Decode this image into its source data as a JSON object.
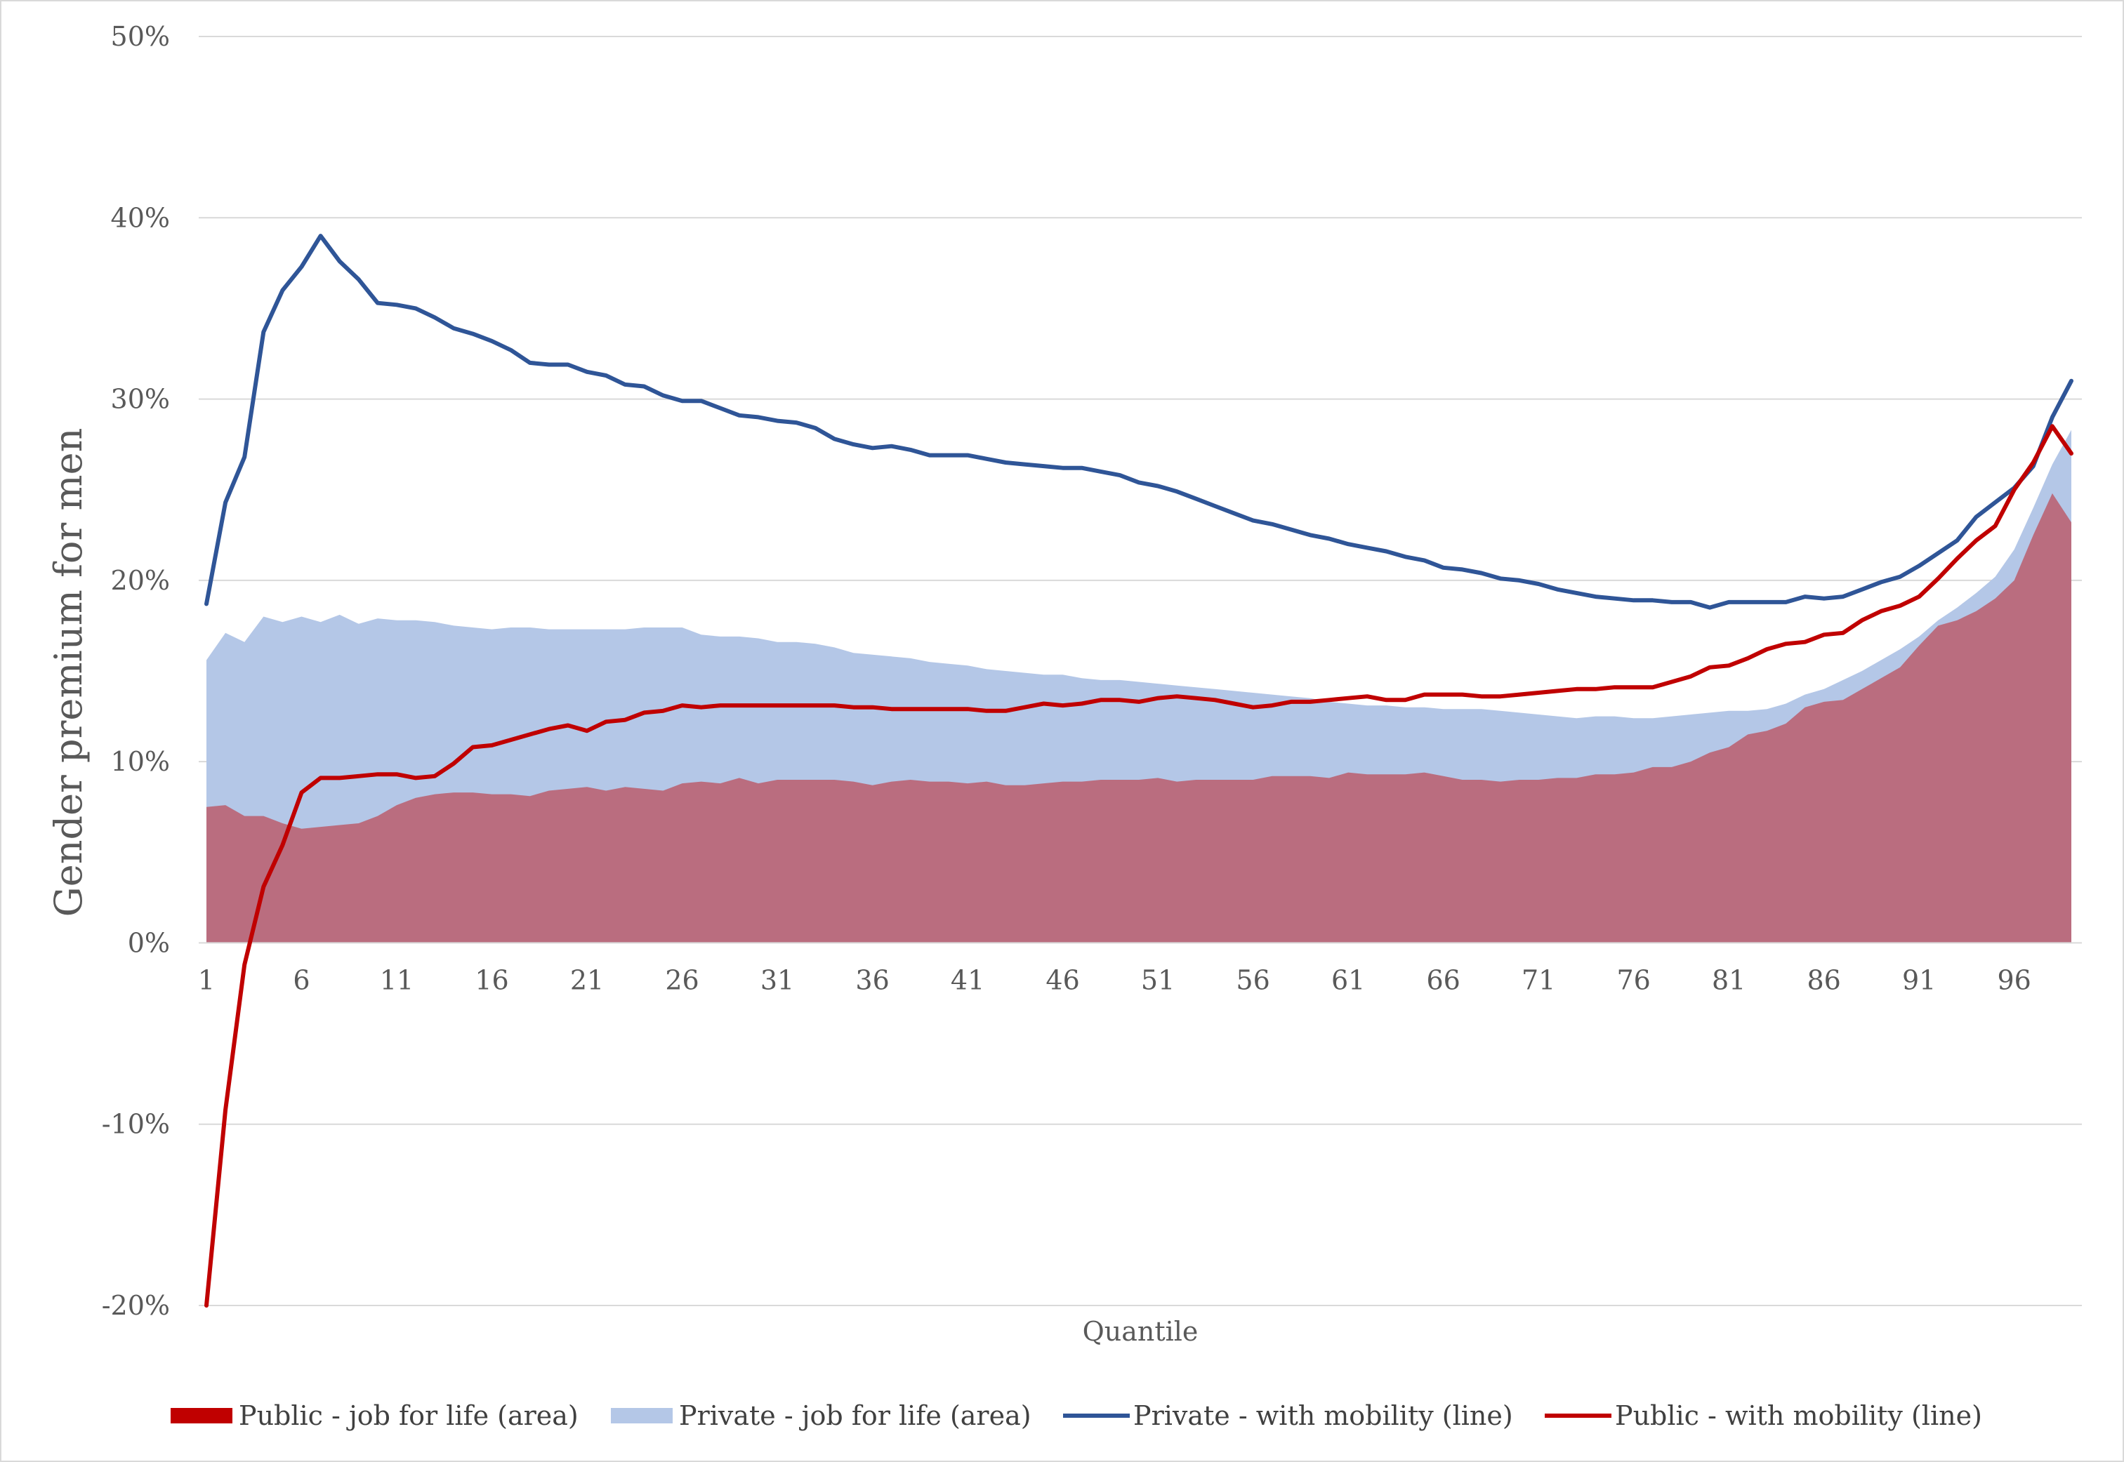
{
  "chart_data": {
    "type": "area",
    "xlabel": "Quantile",
    "ylabel": "Gender premium for men",
    "ylim": [
      -0.2,
      0.5
    ],
    "y_ticks": [
      -0.2,
      -0.1,
      0,
      0.1,
      0.2,
      0.3,
      0.4,
      0.5
    ],
    "y_tick_labels": [
      "-20%",
      "-10%",
      "0%",
      "10%",
      "20%",
      "30%",
      "40%",
      "50%"
    ],
    "x_ticks": [
      1,
      6,
      11,
      16,
      21,
      26,
      31,
      36,
      41,
      46,
      51,
      56,
      61,
      66,
      71,
      76,
      81,
      86,
      91,
      96
    ],
    "x_tick_labels": [
      "1",
      "6",
      "11",
      "16",
      "21",
      "26",
      "31",
      "36",
      "41",
      "46",
      "51",
      "56",
      "61",
      "66",
      "71",
      "76",
      "81",
      "86",
      "91",
      "96"
    ],
    "gridlines": true,
    "legend_position": "bottom",
    "x": [
      1,
      2,
      3,
      4,
      5,
      6,
      7,
      8,
      9,
      10,
      11,
      12,
      13,
      14,
      15,
      16,
      17,
      18,
      19,
      20,
      21,
      22,
      23,
      24,
      25,
      26,
      27,
      28,
      29,
      30,
      31,
      32,
      33,
      34,
      35,
      36,
      37,
      38,
      39,
      40,
      41,
      42,
      43,
      44,
      45,
      46,
      47,
      48,
      49,
      50,
      51,
      52,
      53,
      54,
      55,
      56,
      57,
      58,
      59,
      60,
      61,
      62,
      63,
      64,
      65,
      66,
      67,
      68,
      69,
      70,
      71,
      72,
      73,
      74,
      75,
      76,
      77,
      78,
      79,
      80,
      81,
      82,
      83,
      84,
      85,
      86,
      87,
      88,
      89,
      90,
      91,
      92,
      93,
      94,
      95,
      96,
      97,
      98,
      99
    ],
    "series": [
      {
        "name": "Public - job for life (area)",
        "kind": "area",
        "color": "#c00000",
        "values": [
          0.075,
          0.076,
          0.07,
          0.07,
          0.066,
          0.063,
          0.064,
          0.065,
          0.066,
          0.07,
          0.076,
          0.08,
          0.082,
          0.083,
          0.083,
          0.082,
          0.082,
          0.081,
          0.084,
          0.085,
          0.086,
          0.084,
          0.086,
          0.085,
          0.084,
          0.088,
          0.089,
          0.088,
          0.091,
          0.088,
          0.09,
          0.09,
          0.09,
          0.09,
          0.089,
          0.087,
          0.089,
          0.09,
          0.089,
          0.089,
          0.088,
          0.089,
          0.087,
          0.087,
          0.088,
          0.089,
          0.089,
          0.09,
          0.09,
          0.09,
          0.091,
          0.089,
          0.09,
          0.09,
          0.09,
          0.09,
          0.092,
          0.092,
          0.092,
          0.091,
          0.094,
          0.093,
          0.093,
          0.093,
          0.094,
          0.092,
          0.09,
          0.09,
          0.089,
          0.09,
          0.09,
          0.091,
          0.091,
          0.093,
          0.093,
          0.094,
          0.097,
          0.097,
          0.1,
          0.105,
          0.108,
          0.115,
          0.117,
          0.121,
          0.13,
          0.133,
          0.134,
          0.14,
          0.146,
          0.152,
          0.164,
          0.175,
          0.178,
          0.183,
          0.19,
          0.2,
          0.225,
          0.248,
          0.232
        ]
      },
      {
        "name": "Private - job for life (area)",
        "kind": "area",
        "color": "#b4c7e7",
        "values": [
          0.156,
          0.171,
          0.166,
          0.18,
          0.177,
          0.18,
          0.177,
          0.181,
          0.176,
          0.179,
          0.178,
          0.178,
          0.177,
          0.175,
          0.174,
          0.173,
          0.174,
          0.174,
          0.173,
          0.173,
          0.173,
          0.173,
          0.173,
          0.174,
          0.174,
          0.174,
          0.17,
          0.169,
          0.169,
          0.168,
          0.166,
          0.166,
          0.165,
          0.163,
          0.16,
          0.159,
          0.158,
          0.157,
          0.155,
          0.154,
          0.153,
          0.151,
          0.15,
          0.149,
          0.148,
          0.148,
          0.146,
          0.145,
          0.145,
          0.144,
          0.143,
          0.142,
          0.141,
          0.14,
          0.139,
          0.138,
          0.137,
          0.136,
          0.135,
          0.133,
          0.132,
          0.131,
          0.131,
          0.13,
          0.13,
          0.129,
          0.129,
          0.129,
          0.128,
          0.127,
          0.126,
          0.125,
          0.124,
          0.125,
          0.125,
          0.124,
          0.124,
          0.125,
          0.126,
          0.127,
          0.128,
          0.128,
          0.129,
          0.132,
          0.137,
          0.14,
          0.145,
          0.15,
          0.156,
          0.162,
          0.169,
          0.178,
          0.185,
          0.193,
          0.202,
          0.217,
          0.24,
          0.264,
          0.283
        ]
      },
      {
        "name": "Private - with mobility (line)",
        "kind": "line",
        "color": "#2f5597",
        "values": [
          0.187,
          0.243,
          0.268,
          0.337,
          0.36,
          0.373,
          0.39,
          0.376,
          0.366,
          0.353,
          0.352,
          0.35,
          0.345,
          0.339,
          0.336,
          0.332,
          0.327,
          0.32,
          0.319,
          0.319,
          0.315,
          0.313,
          0.308,
          0.307,
          0.302,
          0.299,
          0.299,
          0.295,
          0.291,
          0.29,
          0.288,
          0.287,
          0.284,
          0.278,
          0.275,
          0.273,
          0.274,
          0.272,
          0.269,
          0.269,
          0.269,
          0.267,
          0.265,
          0.264,
          0.263,
          0.262,
          0.262,
          0.26,
          0.258,
          0.254,
          0.252,
          0.249,
          0.245,
          0.241,
          0.237,
          0.233,
          0.231,
          0.228,
          0.225,
          0.223,
          0.22,
          0.218,
          0.216,
          0.213,
          0.211,
          0.207,
          0.206,
          0.204,
          0.201,
          0.2,
          0.198,
          0.195,
          0.193,
          0.191,
          0.19,
          0.189,
          0.189,
          0.188,
          0.188,
          0.185,
          0.188,
          0.188,
          0.188,
          0.188,
          0.191,
          0.19,
          0.191,
          0.195,
          0.199,
          0.202,
          0.208,
          0.215,
          0.222,
          0.235,
          0.243,
          0.251,
          0.263,
          0.29,
          0.31
        ]
      },
      {
        "name": "Public - with  mobility (line)",
        "kind": "line",
        "color": "#c00000",
        "values": [
          -0.2,
          -0.092,
          -0.012,
          0.031,
          0.054,
          0.083,
          0.091,
          0.091,
          0.092,
          0.093,
          0.093,
          0.091,
          0.092,
          0.099,
          0.108,
          0.109,
          0.112,
          0.115,
          0.118,
          0.12,
          0.117,
          0.122,
          0.123,
          0.127,
          0.128,
          0.131,
          0.13,
          0.131,
          0.131,
          0.131,
          0.131,
          0.131,
          0.131,
          0.131,
          0.13,
          0.13,
          0.129,
          0.129,
          0.129,
          0.129,
          0.129,
          0.128,
          0.128,
          0.13,
          0.132,
          0.131,
          0.132,
          0.134,
          0.134,
          0.133,
          0.135,
          0.136,
          0.135,
          0.134,
          0.132,
          0.13,
          0.131,
          0.133,
          0.133,
          0.134,
          0.135,
          0.136,
          0.134,
          0.134,
          0.137,
          0.137,
          0.137,
          0.136,
          0.136,
          0.137,
          0.138,
          0.139,
          0.14,
          0.14,
          0.141,
          0.141,
          0.141,
          0.144,
          0.147,
          0.152,
          0.153,
          0.157,
          0.162,
          0.165,
          0.166,
          0.17,
          0.171,
          0.178,
          0.183,
          0.186,
          0.191,
          0.201,
          0.212,
          0.222,
          0.23,
          0.25,
          0.265,
          0.285,
          0.27
        ]
      }
    ]
  }
}
